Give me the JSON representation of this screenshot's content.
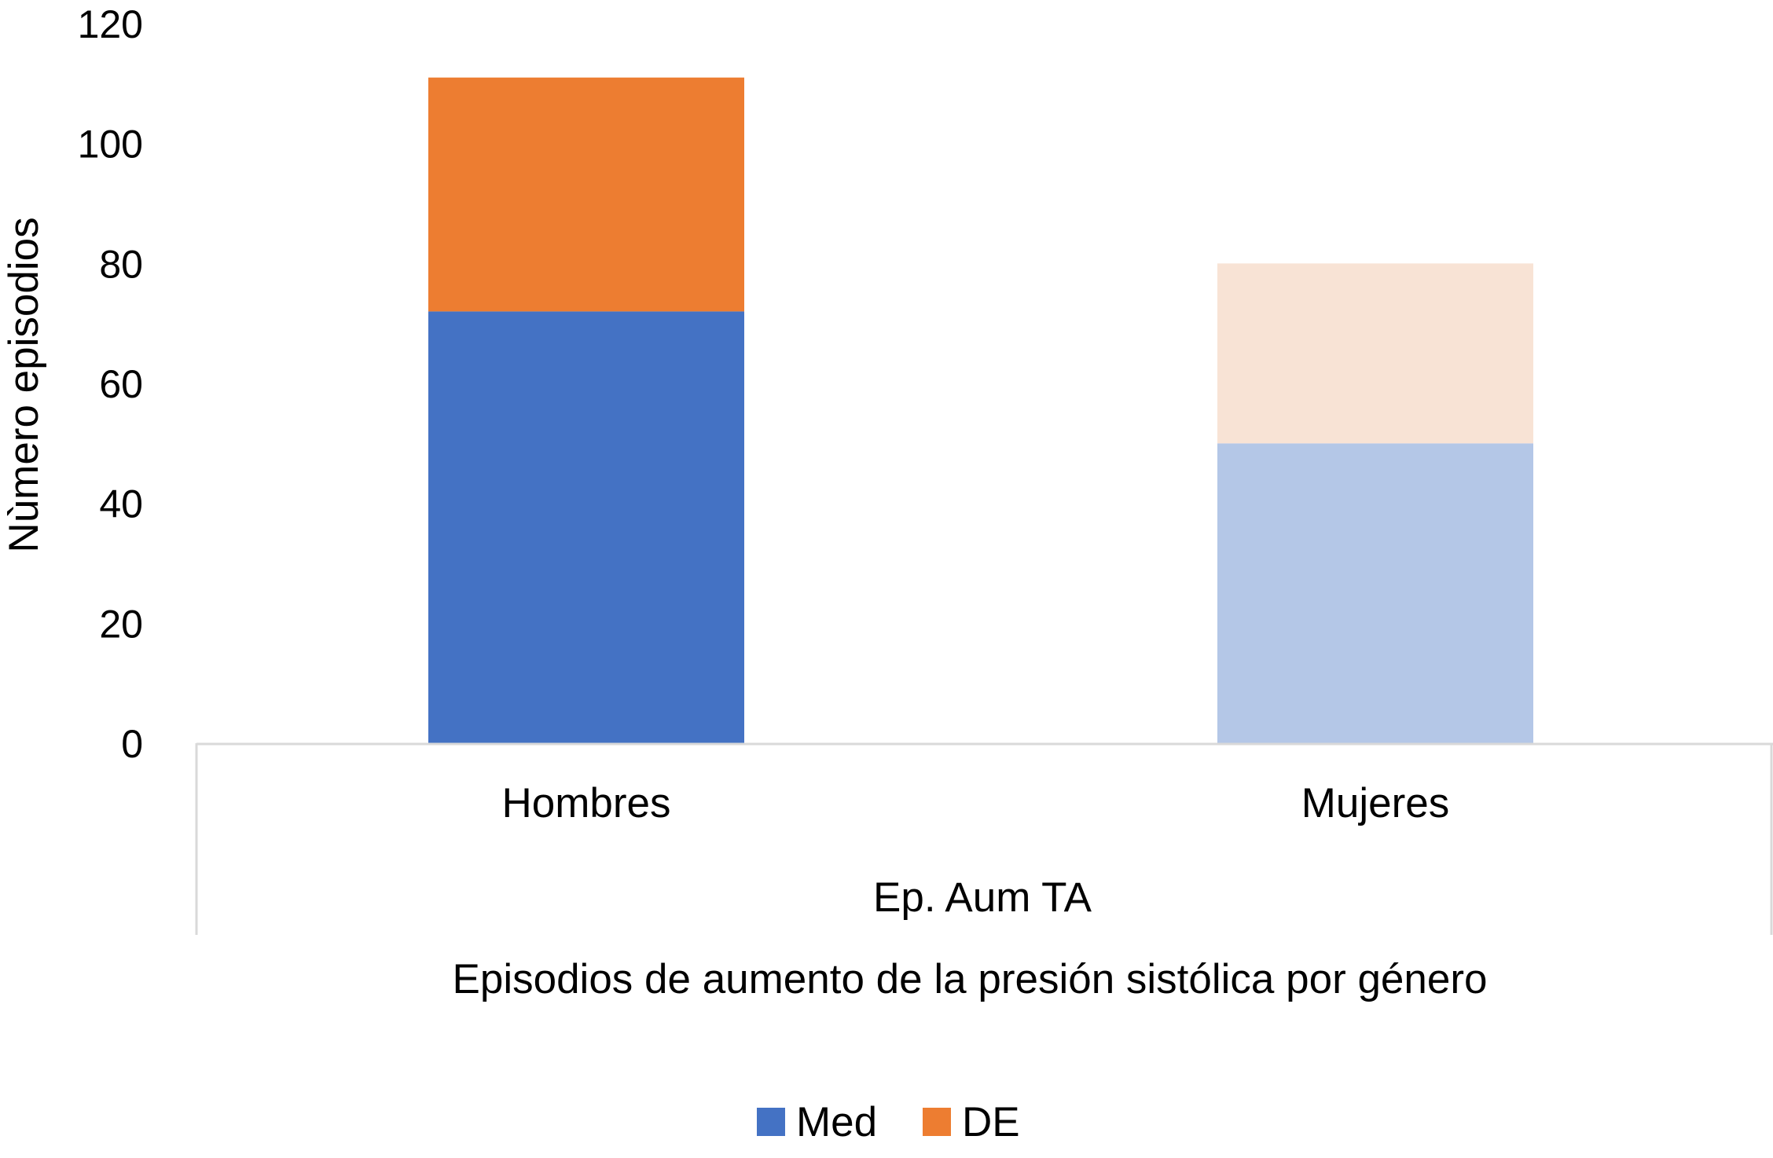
{
  "chart_data": {
    "type": "bar",
    "stacked": true,
    "categories": [
      "Hombres",
      "Mujeres"
    ],
    "group_label": "Ep. Aum TA",
    "series": [
      {
        "name": "Med",
        "values": [
          72,
          50
        ]
      },
      {
        "name": "DE",
        "values": [
          39,
          30
        ]
      }
    ],
    "bar_colors": [
      [
        "#4472c4",
        "#ed7d31"
      ],
      [
        "#b4c7e7",
        "#f8e3d5"
      ]
    ],
    "legend_colors": [
      "#4472c4",
      "#ed7d31"
    ],
    "xlabel": "Episodios de aumento de la presión sistólica por género",
    "ylabel": "Nùmero episodios",
    "ylim": [
      0,
      120
    ],
    "yticks": [
      0,
      20,
      40,
      60,
      80,
      100,
      120
    ],
    "grid": false,
    "legend_position": "bottom"
  }
}
